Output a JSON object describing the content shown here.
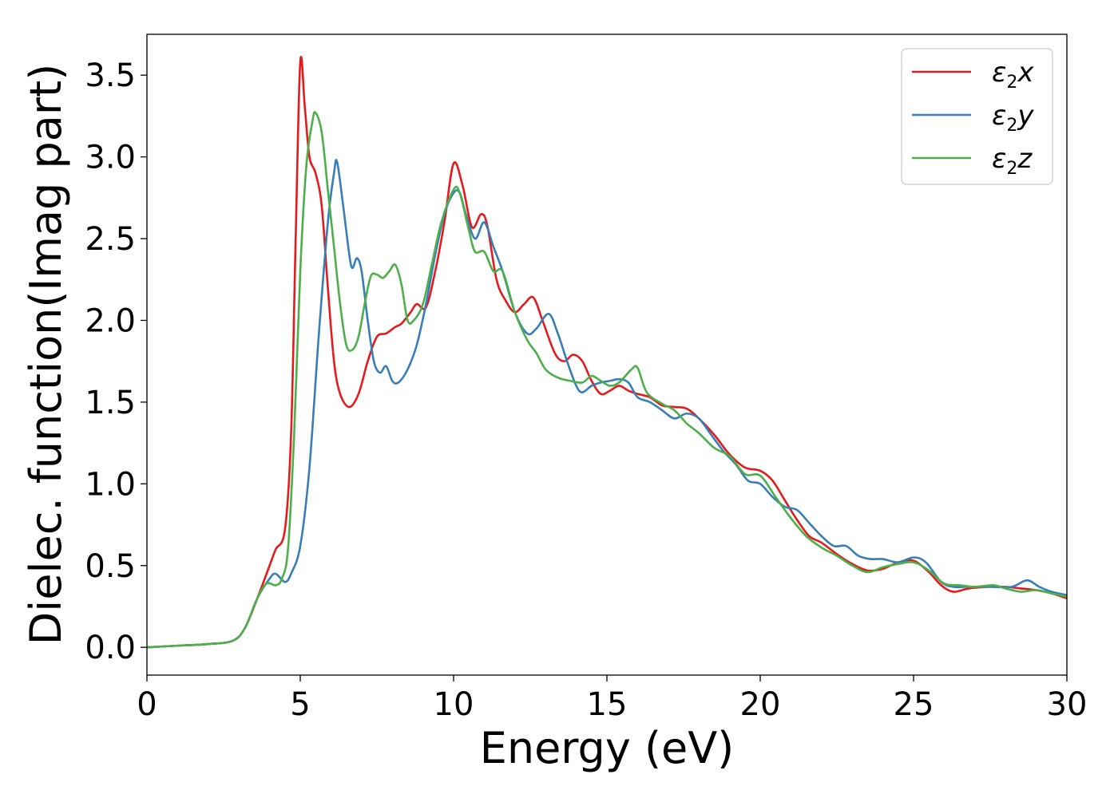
{
  "chart_data": {
    "type": "line",
    "title": "",
    "xlabel": "Energy (eV)",
    "ylabel": "Dielec. function(Imag part)",
    "xlim": [
      0,
      30
    ],
    "ylim": [
      -0.17,
      3.75
    ],
    "xticks": [
      0,
      5,
      10,
      15,
      20,
      25,
      30
    ],
    "xtick_labels": [
      "0",
      "5",
      "10",
      "15",
      "20",
      "25",
      "30"
    ],
    "yticks": [
      0.0,
      0.5,
      1.0,
      1.5,
      2.0,
      2.5,
      3.0,
      3.5
    ],
    "ytick_labels": [
      "0.0",
      "0.5",
      "1.0",
      "1.5",
      "2.0",
      "2.5",
      "3.0",
      "3.5"
    ],
    "grid": false,
    "legend_position": "top-right",
    "series": [
      {
        "name": "x",
        "label_base": "ε",
        "label_sub": "2",
        "label_var": "x",
        "color": "#e41a1c",
        "points": [
          [
            0,
            0.0
          ],
          [
            1,
            0.01
          ],
          [
            2,
            0.02
          ],
          [
            2.8,
            0.04
          ],
          [
            3.2,
            0.12
          ],
          [
            3.6,
            0.3
          ],
          [
            4.0,
            0.5
          ],
          [
            4.2,
            0.6
          ],
          [
            4.5,
            0.72
          ],
          [
            4.7,
            1.3
          ],
          [
            4.85,
            2.5
          ],
          [
            5.0,
            3.58
          ],
          [
            5.15,
            3.3
          ],
          [
            5.3,
            3.0
          ],
          [
            5.5,
            2.9
          ],
          [
            5.7,
            2.7
          ],
          [
            5.9,
            2.2
          ],
          [
            6.1,
            1.75
          ],
          [
            6.3,
            1.55
          ],
          [
            6.6,
            1.47
          ],
          [
            6.9,
            1.55
          ],
          [
            7.2,
            1.75
          ],
          [
            7.5,
            1.9
          ],
          [
            7.8,
            1.92
          ],
          [
            8.1,
            1.96
          ],
          [
            8.3,
            1.98
          ],
          [
            8.6,
            2.05
          ],
          [
            8.8,
            2.1
          ],
          [
            9.1,
            2.08
          ],
          [
            9.4,
            2.3
          ],
          [
            9.7,
            2.6
          ],
          [
            10.0,
            2.96
          ],
          [
            10.3,
            2.82
          ],
          [
            10.6,
            2.57
          ],
          [
            10.9,
            2.65
          ],
          [
            11.1,
            2.58
          ],
          [
            11.4,
            2.25
          ],
          [
            11.7,
            2.12
          ],
          [
            12.0,
            2.05
          ],
          [
            12.3,
            2.1
          ],
          [
            12.6,
            2.14
          ],
          [
            12.9,
            2.0
          ],
          [
            13.3,
            1.8
          ],
          [
            13.6,
            1.75
          ],
          [
            13.9,
            1.79
          ],
          [
            14.2,
            1.75
          ],
          [
            14.5,
            1.63
          ],
          [
            14.8,
            1.55
          ],
          [
            15.1,
            1.57
          ],
          [
            15.4,
            1.6
          ],
          [
            15.7,
            1.57
          ],
          [
            16.0,
            1.55
          ],
          [
            16.4,
            1.53
          ],
          [
            16.8,
            1.48
          ],
          [
            17.2,
            1.47
          ],
          [
            17.6,
            1.46
          ],
          [
            18.0,
            1.4
          ],
          [
            18.5,
            1.3
          ],
          [
            19.0,
            1.18
          ],
          [
            19.5,
            1.1
          ],
          [
            20.0,
            1.08
          ],
          [
            20.4,
            1.02
          ],
          [
            20.8,
            0.9
          ],
          [
            21.2,
            0.78
          ],
          [
            21.6,
            0.68
          ],
          [
            22.0,
            0.64
          ],
          [
            22.5,
            0.57
          ],
          [
            23.0,
            0.51
          ],
          [
            23.5,
            0.47
          ],
          [
            24.0,
            0.48
          ],
          [
            24.5,
            0.52
          ],
          [
            25.0,
            0.53
          ],
          [
            25.5,
            0.46
          ],
          [
            25.9,
            0.38
          ],
          [
            26.3,
            0.34
          ],
          [
            26.8,
            0.36
          ],
          [
            27.5,
            0.37
          ],
          [
            28.0,
            0.37
          ],
          [
            28.5,
            0.36
          ],
          [
            29.0,
            0.35
          ],
          [
            29.5,
            0.33
          ],
          [
            30.0,
            0.3
          ]
        ]
      },
      {
        "name": "y",
        "label_base": "ε",
        "label_sub": "2",
        "label_var": "y",
        "color": "#377eb8",
        "points": [
          [
            0,
            0.0
          ],
          [
            1,
            0.01
          ],
          [
            2,
            0.02
          ],
          [
            2.8,
            0.04
          ],
          [
            3.2,
            0.12
          ],
          [
            3.6,
            0.3
          ],
          [
            4.0,
            0.42
          ],
          [
            4.2,
            0.45
          ],
          [
            4.5,
            0.4
          ],
          [
            4.7,
            0.45
          ],
          [
            5.0,
            0.62
          ],
          [
            5.3,
            1.1
          ],
          [
            5.6,
            1.9
          ],
          [
            5.9,
            2.6
          ],
          [
            6.1,
            2.9
          ],
          [
            6.2,
            2.97
          ],
          [
            6.4,
            2.7
          ],
          [
            6.6,
            2.4
          ],
          [
            6.7,
            2.32
          ],
          [
            6.85,
            2.38
          ],
          [
            7.0,
            2.3
          ],
          [
            7.2,
            2.0
          ],
          [
            7.4,
            1.75
          ],
          [
            7.6,
            1.68
          ],
          [
            7.8,
            1.72
          ],
          [
            8.0,
            1.63
          ],
          [
            8.2,
            1.62
          ],
          [
            8.5,
            1.7
          ],
          [
            8.8,
            1.85
          ],
          [
            9.1,
            2.1
          ],
          [
            9.4,
            2.4
          ],
          [
            9.7,
            2.65
          ],
          [
            10.0,
            2.78
          ],
          [
            10.2,
            2.78
          ],
          [
            10.4,
            2.65
          ],
          [
            10.7,
            2.5
          ],
          [
            11.0,
            2.6
          ],
          [
            11.3,
            2.45
          ],
          [
            11.6,
            2.3
          ],
          [
            12.0,
            2.05
          ],
          [
            12.4,
            1.92
          ],
          [
            12.7,
            1.95
          ],
          [
            13.1,
            2.04
          ],
          [
            13.4,
            1.92
          ],
          [
            13.7,
            1.75
          ],
          [
            14.0,
            1.6
          ],
          [
            14.2,
            1.56
          ],
          [
            14.5,
            1.6
          ],
          [
            14.8,
            1.62
          ],
          [
            15.1,
            1.63
          ],
          [
            15.4,
            1.64
          ],
          [
            15.7,
            1.62
          ],
          [
            16.0,
            1.53
          ],
          [
            16.4,
            1.5
          ],
          [
            16.8,
            1.45
          ],
          [
            17.2,
            1.4
          ],
          [
            17.6,
            1.43
          ],
          [
            18.0,
            1.4
          ],
          [
            18.4,
            1.3
          ],
          [
            18.8,
            1.2
          ],
          [
            19.2,
            1.12
          ],
          [
            19.6,
            1.02
          ],
          [
            20.0,
            1.0
          ],
          [
            20.4,
            0.92
          ],
          [
            20.8,
            0.86
          ],
          [
            21.2,
            0.84
          ],
          [
            21.6,
            0.76
          ],
          [
            22.0,
            0.68
          ],
          [
            22.4,
            0.62
          ],
          [
            22.8,
            0.62
          ],
          [
            23.2,
            0.56
          ],
          [
            23.6,
            0.54
          ],
          [
            24.0,
            0.54
          ],
          [
            24.5,
            0.52
          ],
          [
            25.0,
            0.55
          ],
          [
            25.4,
            0.52
          ],
          [
            25.9,
            0.4
          ],
          [
            26.3,
            0.37
          ],
          [
            26.8,
            0.37
          ],
          [
            27.5,
            0.37
          ],
          [
            28.2,
            0.37
          ],
          [
            28.7,
            0.41
          ],
          [
            29.1,
            0.37
          ],
          [
            29.5,
            0.34
          ],
          [
            30.0,
            0.32
          ]
        ]
      },
      {
        "name": "z",
        "label_base": "ε",
        "label_sub": "2",
        "label_var": "z",
        "color": "#4daf4a",
        "points": [
          [
            0,
            0.0
          ],
          [
            1,
            0.01
          ],
          [
            2,
            0.02
          ],
          [
            2.8,
            0.04
          ],
          [
            3.2,
            0.12
          ],
          [
            3.6,
            0.3
          ],
          [
            3.9,
            0.39
          ],
          [
            4.2,
            0.38
          ],
          [
            4.4,
            0.42
          ],
          [
            4.6,
            0.6
          ],
          [
            4.8,
            1.3
          ],
          [
            5.0,
            2.3
          ],
          [
            5.2,
            2.95
          ],
          [
            5.4,
            3.22
          ],
          [
            5.5,
            3.27
          ],
          [
            5.7,
            3.15
          ],
          [
            5.9,
            2.8
          ],
          [
            6.1,
            2.45
          ],
          [
            6.3,
            2.1
          ],
          [
            6.5,
            1.85
          ],
          [
            6.7,
            1.82
          ],
          [
            6.9,
            1.9
          ],
          [
            7.1,
            2.1
          ],
          [
            7.3,
            2.27
          ],
          [
            7.5,
            2.28
          ],
          [
            7.7,
            2.26
          ],
          [
            7.9,
            2.3
          ],
          [
            8.1,
            2.34
          ],
          [
            8.3,
            2.22
          ],
          [
            8.5,
            2.0
          ],
          [
            8.7,
            2.0
          ],
          [
            9.0,
            2.1
          ],
          [
            9.3,
            2.35
          ],
          [
            9.6,
            2.6
          ],
          [
            10.0,
            2.8
          ],
          [
            10.2,
            2.78
          ],
          [
            10.5,
            2.55
          ],
          [
            10.7,
            2.42
          ],
          [
            11.0,
            2.42
          ],
          [
            11.3,
            2.3
          ],
          [
            11.6,
            2.3
          ],
          [
            12.0,
            2.05
          ],
          [
            12.4,
            1.88
          ],
          [
            12.7,
            1.8
          ],
          [
            13.0,
            1.7
          ],
          [
            13.4,
            1.65
          ],
          [
            13.8,
            1.63
          ],
          [
            14.2,
            1.62
          ],
          [
            14.5,
            1.66
          ],
          [
            14.8,
            1.63
          ],
          [
            15.1,
            1.6
          ],
          [
            15.4,
            1.62
          ],
          [
            15.8,
            1.7
          ],
          [
            16.0,
            1.71
          ],
          [
            16.3,
            1.56
          ],
          [
            16.8,
            1.49
          ],
          [
            17.2,
            1.45
          ],
          [
            17.6,
            1.37
          ],
          [
            18.0,
            1.31
          ],
          [
            18.5,
            1.22
          ],
          [
            19.0,
            1.17
          ],
          [
            19.5,
            1.06
          ],
          [
            20.0,
            1.05
          ],
          [
            20.5,
            0.92
          ],
          [
            21.0,
            0.79
          ],
          [
            21.5,
            0.68
          ],
          [
            22.0,
            0.61
          ],
          [
            22.5,
            0.56
          ],
          [
            23.0,
            0.5
          ],
          [
            23.5,
            0.46
          ],
          [
            24.0,
            0.49
          ],
          [
            24.5,
            0.51
          ],
          [
            25.0,
            0.52
          ],
          [
            25.5,
            0.47
          ],
          [
            26.0,
            0.39
          ],
          [
            26.5,
            0.38
          ],
          [
            27.0,
            0.37
          ],
          [
            27.6,
            0.38
          ],
          [
            28.0,
            0.36
          ],
          [
            28.5,
            0.34
          ],
          [
            29.0,
            0.35
          ],
          [
            29.5,
            0.33
          ],
          [
            30.0,
            0.31
          ]
        ]
      }
    ]
  }
}
